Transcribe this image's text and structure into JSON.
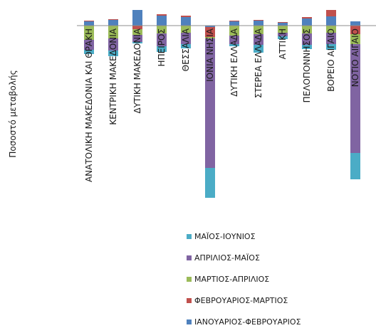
{
  "chart_data": {
    "type": "bar",
    "stacked": true,
    "title": "",
    "xlabel": "",
    "ylabel": "Ποσοστό μεταβολής",
    "y_axis_labels_shown": false,
    "grid": false,
    "legend_position": "bottom",
    "categories": [
      "ΑΝΑΤΟΛΙΚΗ ΜΑΚΕΔΟΝΙΑ ΚΑΙ ΘΡΑΚΗ",
      "ΚΕΝΤΡΙΚΗ ΜΑΚΕΔΟΝΙΑ",
      "ΔΥΤΙΚΗ ΜΑΚΕΔΟΝΙΑ",
      "ΗΠΕΙΡΟΣ",
      "ΘΕΣΣΑΛΙΑ",
      "ΙΟΝΙΑ ΝΗΣΙΑ",
      "ΔΥΤΙΚΗ ΕΛΛΑΔΑ",
      "ΣΤΕΡΕΑ ΕΛΛΑΔΑ",
      "ΑΤΤΙΚΗ",
      "ΠΕΛΟΠΟΝΝΗΣΟΣ",
      "ΒΟΡΕΙΟ ΑΙΓΑΙΟ",
      "ΝΟΤΙΟ ΑΙΓΑΙΟ"
    ],
    "series": [
      {
        "name": "ΙΑΝΟΥΑΡΙΟΣ-ΦΕΒΡΟΥΑΡΙΟΣ",
        "color": "#4f81bd",
        "values": [
          6,
          8,
          22,
          14,
          12,
          -2,
          6,
          7,
          4,
          10,
          13,
          6
        ]
      },
      {
        "name": "ΦΕΒΡΟΥΑΡΙΟΣ-ΜΑΡΤΙΟΣ",
        "color": "#c0504d",
        "values": [
          1,
          1,
          -5,
          2,
          2,
          -14,
          1,
          1,
          1,
          2,
          9,
          -12
        ]
      },
      {
        "name": "ΜΑΡΤΙΟΣ-ΑΠΡΙΛΙΟΣ",
        "color": "#9bbb59",
        "values": [
          -20,
          -18,
          -8,
          -11,
          -10,
          -2,
          -14,
          -12,
          -10,
          -11,
          -10,
          -14
        ]
      },
      {
        "name": "ΑΠΡΙΛΙΟΣ-ΜΑΪΟΣ",
        "color": "#8064a2",
        "values": [
          -14,
          -17,
          -10,
          -18,
          -16,
          -182,
          -12,
          -15,
          -5,
          -16,
          -16,
          -153
        ]
      },
      {
        "name": "ΜΑΪΟΣ-ΙΟΥΝΙΟΣ",
        "color": "#4bacc6",
        "values": [
          -6,
          -8,
          -2,
          -8,
          -6,
          -42,
          -3,
          -11,
          -4,
          -6,
          -8,
          -37
        ]
      }
    ]
  }
}
